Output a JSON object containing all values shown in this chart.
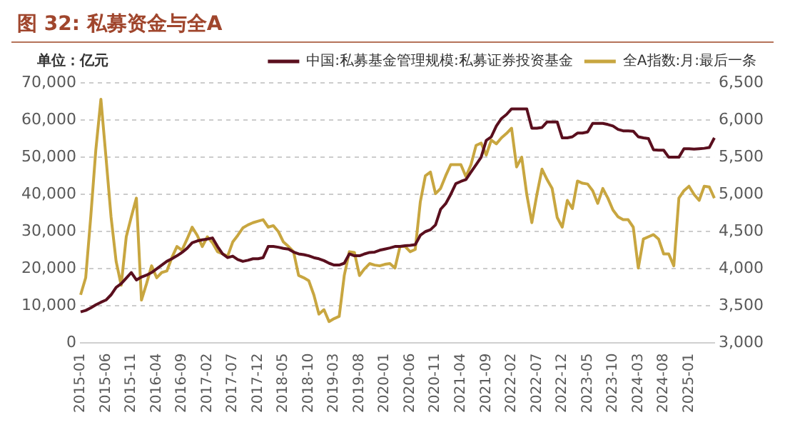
{
  "chart_data": {
    "type": "line",
    "title": "图 32: 私募资金与全A",
    "ylabel": "单位：亿元",
    "categories": [
      "2015-01",
      null,
      null,
      null,
      null,
      "2015-06",
      null,
      null,
      null,
      null,
      "2015-11",
      null,
      null,
      null,
      null,
      "2016-04",
      null,
      null,
      null,
      null,
      "2016-09",
      null,
      null,
      null,
      null,
      "2017-02",
      null,
      null,
      null,
      null,
      "2017-07",
      null,
      null,
      null,
      null,
      "2017-12",
      null,
      null,
      null,
      null,
      "2018-05",
      null,
      null,
      null,
      null,
      "2018-10",
      null,
      null,
      null,
      null,
      "2019-03",
      null,
      null,
      null,
      null,
      "2019-08",
      null,
      null,
      null,
      null,
      "2020-01",
      null,
      null,
      null,
      null,
      "2020-06",
      null,
      null,
      null,
      null,
      "2020-11",
      null,
      null,
      null,
      null,
      "2021-04",
      null,
      null,
      null,
      null,
      "2021-09",
      null,
      null,
      null,
      null,
      "2022-02",
      null,
      null,
      null,
      null,
      "2022-07",
      null,
      null,
      null,
      null,
      "2022-12",
      null,
      null,
      null,
      null,
      "2023-05",
      null,
      null,
      null,
      null,
      "2023-10",
      null,
      null,
      null,
      null,
      "2024-03",
      null,
      null,
      null,
      null,
      "2024-08",
      null,
      null,
      null,
      null,
      "2025-01",
      null,
      null,
      null,
      null,
      null
    ],
    "series": [
      {
        "name": "中国:私募基金管理规模:私募证券投资基金",
        "color": "#5a0f1e",
        "values": [
          8400,
          8800,
          9500,
          10300,
          11000,
          11600,
          13000,
          15000,
          16000,
          17500,
          19000,
          17000,
          17800,
          18300,
          19000,
          20000,
          21000,
          22000,
          22700,
          23500,
          24400,
          25500,
          27000,
          27500,
          27800,
          28000,
          28300,
          26000,
          24000,
          23000,
          23400,
          22500,
          22000,
          22300,
          22700,
          22700,
          23000,
          26000,
          26000,
          25800,
          25500,
          25300,
          24500,
          24000,
          23800,
          23500,
          23000,
          22700,
          22200,
          21500,
          21000,
          21000,
          21500,
          24000,
          23500,
          23500,
          24000,
          24400,
          24500,
          25000,
          25300,
          25600,
          26000,
          26000,
          26200,
          26300,
          26500,
          29000,
          30000,
          30500,
          31800,
          36000,
          37500,
          40000,
          42900,
          43500,
          44000,
          46000,
          48000,
          50000,
          54500,
          55500,
          58400,
          60400,
          61500,
          63000,
          63000,
          63000,
          63000,
          57800,
          57800,
          58000,
          59500,
          59500,
          59500,
          55200,
          55200,
          55500,
          56500,
          56500,
          56800,
          59100,
          59100,
          59100,
          58800,
          58400,
          57500,
          57100,
          57100,
          57000,
          55500,
          55200,
          55000,
          52000,
          51900,
          51900,
          50000,
          50000,
          50000,
          52300,
          52300,
          52200,
          52300,
          52400,
          52600,
          55200
        ]
      },
      {
        "name": "全A指数:月:最后一条",
        "color": "#c8a640",
        "axis": "y2",
        "values": [
          3650,
          3880,
          4700,
          5600,
          6280,
          5500,
          4700,
          4100,
          3780,
          4430,
          4700,
          4950,
          3580,
          3800,
          4040,
          3880,
          3950,
          3970,
          4150,
          4300,
          4250,
          4400,
          4560,
          4450,
          4300,
          4430,
          4350,
          4230,
          4200,
          4170,
          4360,
          4450,
          4550,
          4590,
          4620,
          4640,
          4660,
          4560,
          4580,
          4500,
          4360,
          4300,
          4230,
          3910,
          3880,
          3840,
          3650,
          3390,
          3450,
          3290,
          3330,
          3360,
          3910,
          4230,
          4220,
          3910,
          4000,
          4070,
          4050,
          4040,
          4060,
          4070,
          4010,
          4300,
          4300,
          4230,
          4260,
          4900,
          5250,
          5300,
          5010,
          5080,
          5250,
          5400,
          5400,
          5400,
          5240,
          5400,
          5660,
          5690,
          5530,
          5730,
          5680,
          5760,
          5820,
          5890,
          5370,
          5500,
          5000,
          4620,
          5000,
          5340,
          5200,
          5080,
          4690,
          4560,
          4920,
          4810,
          5180,
          5150,
          5140,
          5050,
          4880,
          5080,
          4950,
          4790,
          4700,
          4660,
          4660,
          4560,
          4010,
          4400,
          4430,
          4460,
          4400,
          4200,
          4200,
          4040,
          4950,
          5050,
          5110,
          5000,
          4920,
          5110,
          5100,
          4950
        ]
      }
    ],
    "ylim": [
      0,
      70000
    ],
    "yticks": [
      0,
      {
        "value": 10000,
        "label": "10,000"
      },
      {
        "value": 20000,
        "label": "20,000"
      },
      {
        "value": 30000,
        "label": "30,000"
      },
      {
        "value": 40000,
        "label": "40,000"
      },
      {
        "value": 50000,
        "label": "50,000"
      },
      {
        "value": 60000,
        "label": "60,000"
      },
      {
        "value": 70000,
        "label": "70,000"
      }
    ],
    "y2lim": [
      3000,
      6500
    ],
    "y2ticks": [
      {
        "value": 3000,
        "label": "3,000"
      },
      {
        "value": 3500,
        "label": "3,500"
      },
      {
        "value": 4000,
        "label": "4,000"
      },
      {
        "value": 4500,
        "label": "4,500"
      },
      {
        "value": 5000,
        "label": "5,000"
      },
      {
        "value": 5500,
        "label": "5,500"
      },
      {
        "value": 6000,
        "label": "6,000"
      },
      {
        "value": 6500,
        "label": "6,500"
      }
    ],
    "grid": "y",
    "legend": "top",
    "marker": "none",
    "line_style": "solid"
  }
}
